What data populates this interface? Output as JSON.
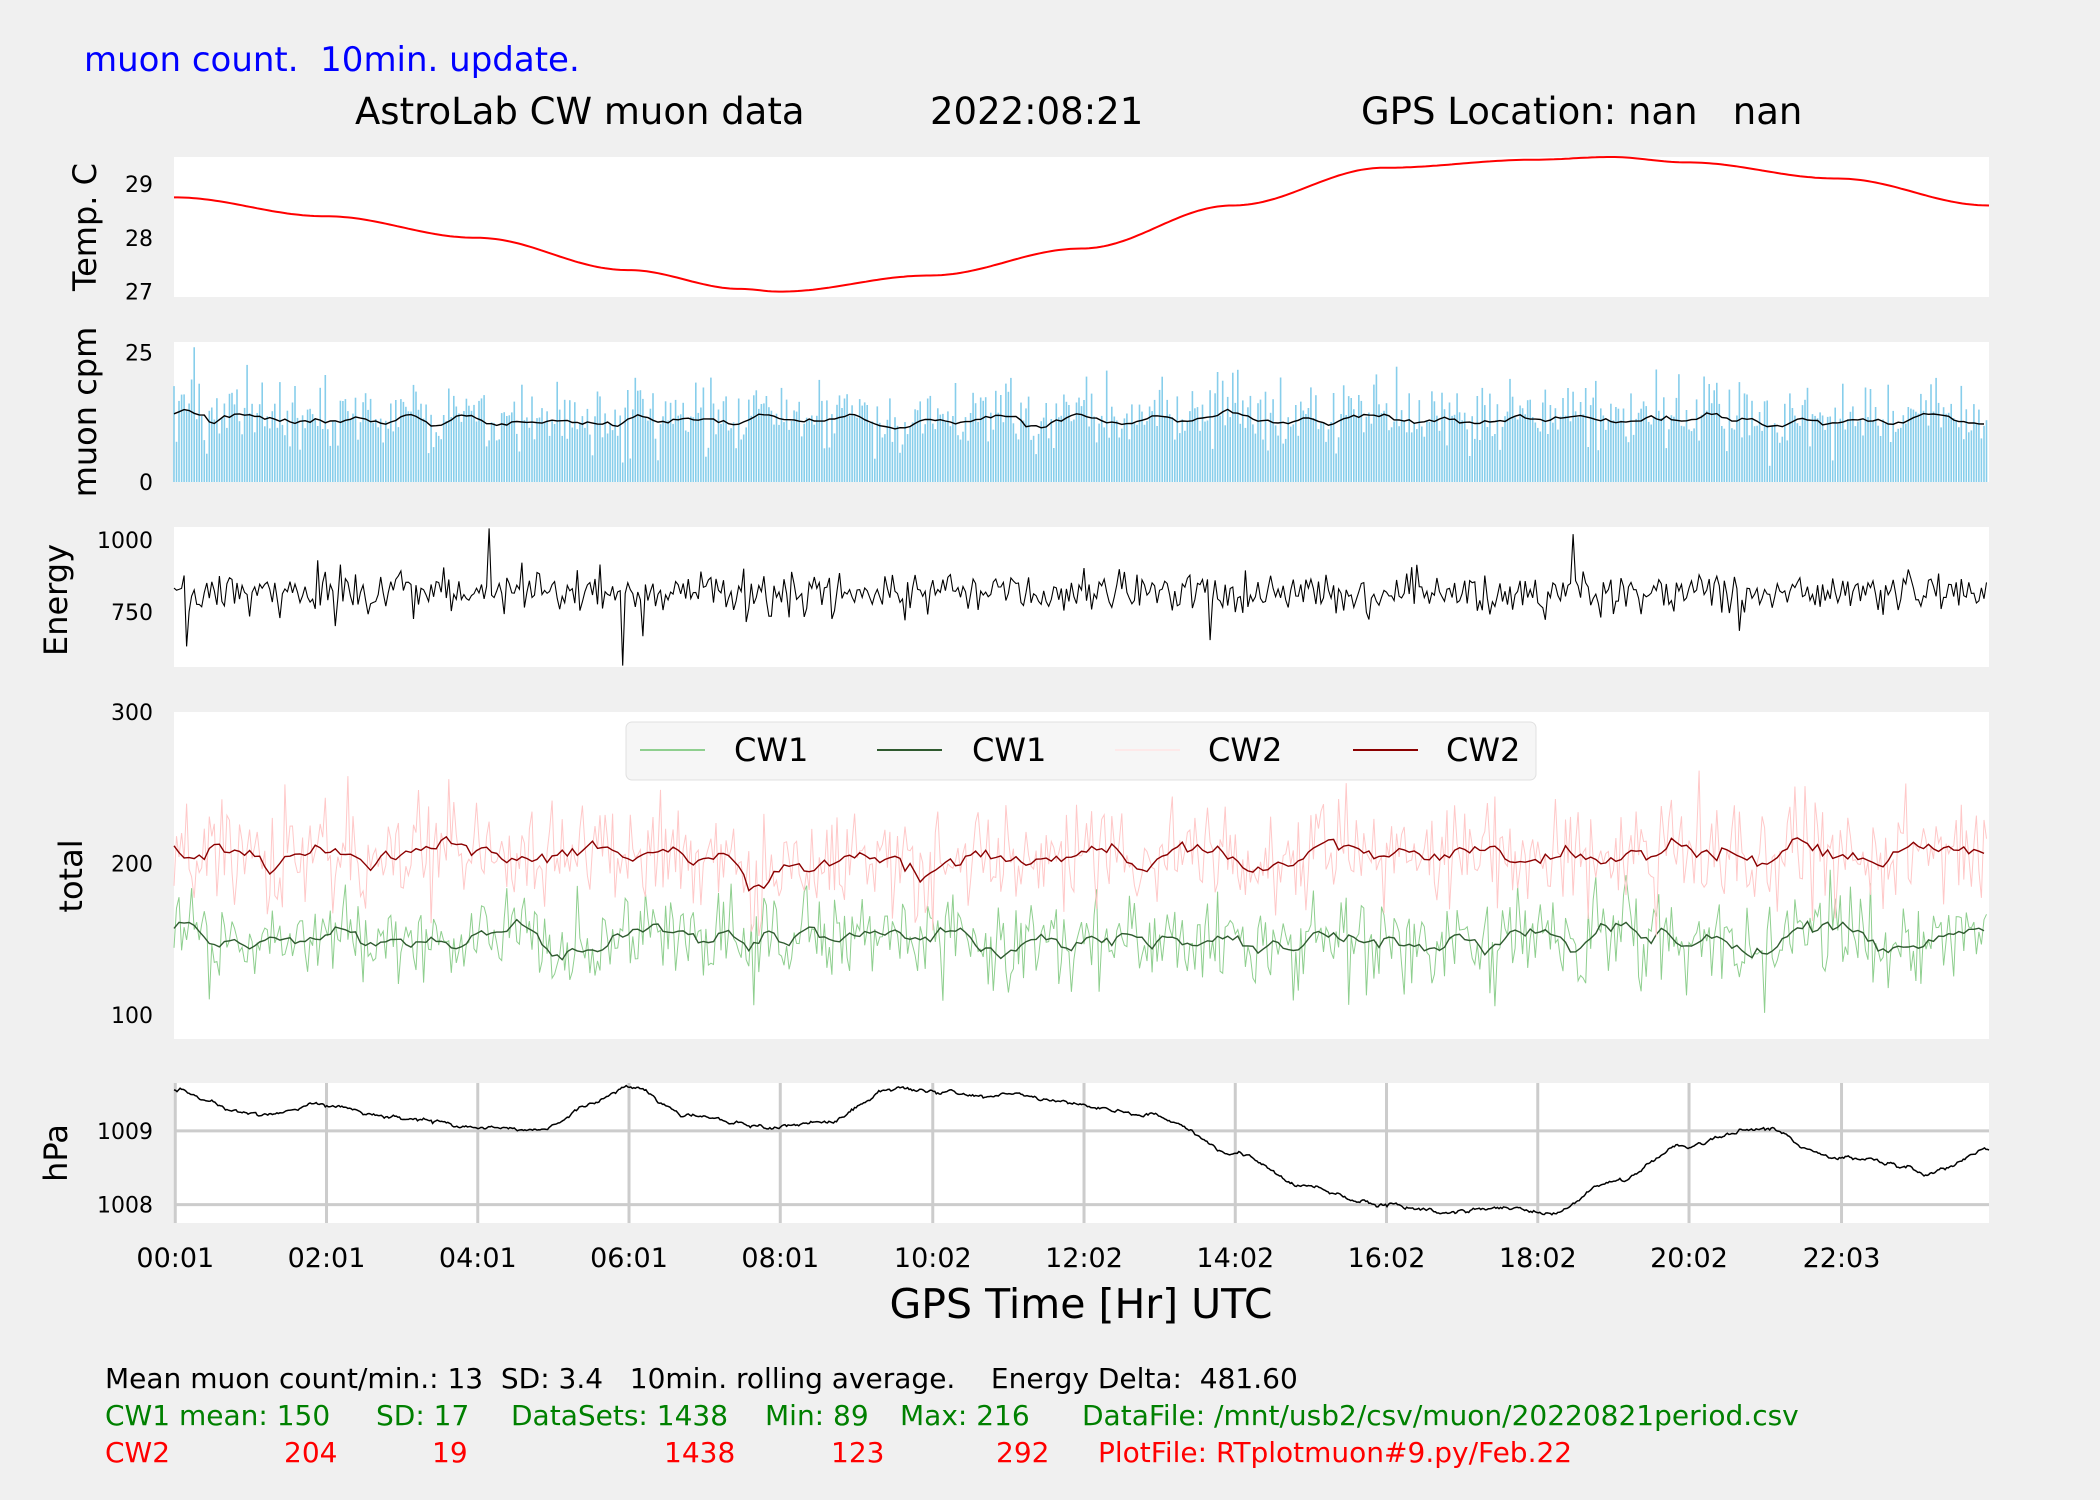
{
  "header": {
    "update_note": "muon count.  10min. update.",
    "title": "AstroLab CW muon data",
    "date": "2022:08:21",
    "gps_location": "GPS Location: nan   nan"
  },
  "colors": {
    "temp_line": "#ff0000",
    "muon_bars": "#87ceeb",
    "muon_avg": "#000000",
    "energy_line": "#000000",
    "cw1_raw": "#8fcf8f",
    "cw1_avg": "#2f5a2f",
    "cw2_raw": "#ffc8c8",
    "cw2_avg": "#8b0000",
    "pressure_line": "#000000",
    "grid": "#cccccc"
  },
  "chart_data": [
    {
      "panel": "temperature",
      "type": "line",
      "ylabel": "Temp. C",
      "yticks": [
        "27",
        "28",
        "29"
      ],
      "ylim": [
        26.9,
        29.5
      ],
      "x_hours": [
        0,
        2,
        4,
        6,
        7.5,
        8,
        10,
        12,
        14,
        16,
        18,
        19,
        20,
        22,
        24
      ],
      "y": [
        28.75,
        28.4,
        28.0,
        27.4,
        27.05,
        27.0,
        27.3,
        27.8,
        28.6,
        29.3,
        29.45,
        29.5,
        29.4,
        29.1,
        28.6
      ]
    },
    {
      "panel": "muon_cpm",
      "type": "bar",
      "ylabel": "muon cpm",
      "yticks": [
        "0",
        "25"
      ],
      "ylim": [
        0,
        27
      ],
      "mean_per_min": 13,
      "rolling_avg_level": 12
    },
    {
      "panel": "energy",
      "type": "line",
      "ylabel": "Energy",
      "yticks": [
        "750",
        "1000"
      ],
      "ylim": [
        560,
        1045
      ],
      "mean": 820
    },
    {
      "panel": "total",
      "type": "line",
      "ylabel": "total",
      "yticks": [
        "100",
        "200",
        "300"
      ],
      "ylim": [
        84,
        300
      ],
      "legend": [
        "CW1",
        "CW1",
        "CW2",
        "CW2"
      ],
      "legend_position": "top-center",
      "series": [
        {
          "name": "CW1",
          "mean": 150,
          "sd": 17,
          "min": 89,
          "max": 216
        },
        {
          "name": "CW2",
          "mean": 204,
          "sd": 19,
          "min": 123,
          "max": 292
        }
      ]
    },
    {
      "panel": "pressure",
      "type": "line",
      "ylabel": "hPa",
      "yticks": [
        "1008",
        "1009"
      ],
      "ylim": [
        1007.75,
        1009.65
      ],
      "grid": true,
      "x_hours": [
        0,
        1,
        2,
        3,
        4,
        4.8,
        5.5,
        6,
        6.8,
        8,
        8.6,
        9.5,
        11,
        12,
        13,
        14,
        15,
        16.3,
        17.5,
        18.2,
        19,
        20,
        21,
        22,
        22.5,
        23.2,
        24
      ],
      "y": [
        1009.55,
        1009.2,
        1009.35,
        1009.15,
        1009.0,
        1009.0,
        1009.35,
        1009.6,
        1009.2,
        1009.05,
        1009.1,
        1009.6,
        1009.5,
        1009.35,
        1009.2,
        1008.7,
        1008.2,
        1007.95,
        1007.9,
        1007.85,
        1008.3,
        1008.8,
        1009.0,
        1008.65,
        1008.6,
        1008.45,
        1008.75
      ]
    }
  ],
  "x_axis": {
    "label": "GPS Time  [Hr] UTC",
    "xlim_hours": [
      0,
      24
    ],
    "ticks": [
      {
        "hour": 0.0167,
        "label": "00:01"
      },
      {
        "hour": 2.0167,
        "label": "02:01"
      },
      {
        "hour": 4.0167,
        "label": "04:01"
      },
      {
        "hour": 6.0167,
        "label": "06:01"
      },
      {
        "hour": 8.0167,
        "label": "08:01"
      },
      {
        "hour": 10.0333,
        "label": "10:02"
      },
      {
        "hour": 12.0333,
        "label": "12:02"
      },
      {
        "hour": 14.0333,
        "label": "14:02"
      },
      {
        "hour": 16.0333,
        "label": "16:02"
      },
      {
        "hour": 18.0333,
        "label": "18:02"
      },
      {
        "hour": 20.0333,
        "label": "20:02"
      },
      {
        "hour": 22.05,
        "label": "22:03"
      }
    ]
  },
  "footer": {
    "line1": "Mean muon count/min.: 13  SD: 3.4   10min. rolling average.    Energy Delta:  481.60",
    "cw1": {
      "mean": "CW1 mean: 150",
      "sd": "SD: 17",
      "datasets": "DataSets: 1438",
      "min": "Min: 89",
      "max": "Max: 216",
      "datafile": "DataFile: /mnt/usb2/csv/muon/20220821period.csv"
    },
    "cw2": {
      "label": "CW2",
      "mean": "204",
      "sd": "19",
      "datasets": "1438",
      "min": "123",
      "max": "292",
      "plotfile": "PlotFile: RTplotmuon#9.py/Feb.22"
    }
  }
}
